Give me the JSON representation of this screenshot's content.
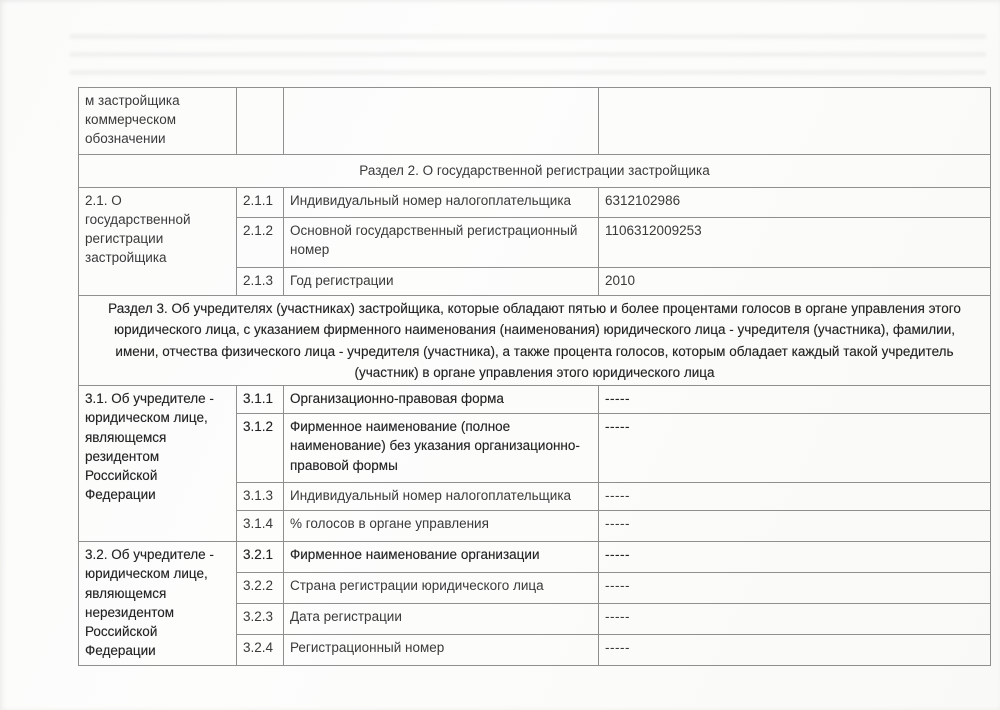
{
  "colors": {
    "text": "#3a3a3a",
    "border": "#8f8f8f",
    "page": "#fbfbfa"
  },
  "continuation": {
    "label": "м застройщика коммерческом обозначении"
  },
  "section2": {
    "title": "Раздел 2. О государственной регистрации застройщика",
    "group_label": "2.1. О государственной регистрации застройщика",
    "rows": [
      {
        "num": "2.1.1",
        "label": "Индивидуальный номер налогоплательщика",
        "value": "6312102986"
      },
      {
        "num": "2.1.2",
        "label": "Основной государственный регистрационный номер",
        "value": "1106312009253"
      },
      {
        "num": "2.1.3",
        "label": "Год регистрации",
        "value": "2010"
      }
    ]
  },
  "section3": {
    "title": "Раздел 3. Об учредителях (участниках) застройщика, которые обладают пятью и более процентами голосов в органе управления этого юридического лица, с указанием фирменного наименования (наименования) юридического лица - учредителя (участника), фамилии, имени, отчества физического лица - учредителя (участника), а также процента голосов, которым обладает каждый такой учредитель (участник) в органе управления этого юридического лица",
    "group31": {
      "label": "3.1. Об учредителе - юридическом лице, являющемся резидентом Российской Федерации",
      "rows": [
        {
          "num": "3.1.1",
          "label": "Организационно-правовая форма",
          "value": "-----"
        },
        {
          "num": "3.1.2",
          "label": "Фирменное наименование (полное наименование) без указания организационно-правовой формы",
          "value": "-----"
        },
        {
          "num": "3.1.3",
          "label": "Индивидуальный номер налогоплательщика",
          "value": "-----"
        },
        {
          "num": "3.1.4",
          "label": "% голосов в органе управления",
          "value": "-----"
        }
      ]
    },
    "group32": {
      "label": "3.2. Об учредителе - юридическом лице, являющемся нерезидентом Российской Федерации",
      "rows": [
        {
          "num": "3.2.1",
          "label": "Фирменное наименование организации",
          "value": "-----"
        },
        {
          "num": "3.2.2",
          "label": "Страна регистрации юридического лица",
          "value": "-----"
        },
        {
          "num": "3.2.3",
          "label": "Дата регистрации",
          "value": "-----"
        },
        {
          "num": "3.2.4",
          "label": "Регистрационный номер",
          "value": "-----"
        }
      ]
    }
  }
}
